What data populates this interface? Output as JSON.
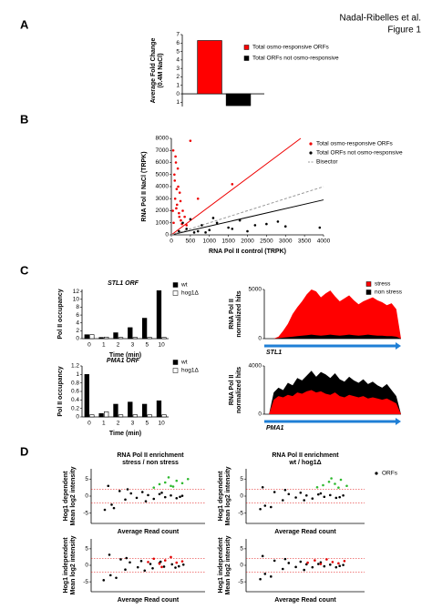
{
  "header": {
    "author": "Nadal-Ribelles et al.",
    "figure": "Figure 1"
  },
  "panels": [
    "A",
    "B",
    "C",
    "D"
  ],
  "chart_data": [
    {
      "type": "bar",
      "ylabel": [
        "Average Fold Change",
        "(0.4M NaCl)"
      ],
      "categories": [
        null
      ],
      "series": [
        {
          "name": "Total osmo-responsive ORFs",
          "color": "#ff0000",
          "values": [
            6.3
          ]
        },
        {
          "name": "Total ORFs not osmo-responsive",
          "color": "#000000",
          "values": [
            -1.4
          ]
        }
      ],
      "ylim": [
        -1.5,
        7
      ],
      "yticks": [
        7,
        6,
        5,
        4,
        3,
        2,
        1,
        0,
        {
          "value": -1,
          "label": "1"
        }
      ]
    },
    {
      "type": "scatter",
      "xlabel": "RNA Pol II control (TRPK)",
      "ylabel": [
        "RNA Pol II NaCl (TRPK)"
      ],
      "xlim": [
        0,
        4000
      ],
      "xticks": [
        0,
        500,
        1000,
        1500,
        2000,
        2500,
        3000,
        3500,
        4000
      ],
      "ylim": [
        0,
        8000
      ],
      "yticks": [
        0,
        1000,
        2000,
        3000,
        4000,
        5000,
        6000,
        7000,
        8000
      ],
      "series": [
        {
          "name": "Total osmo-responsive ORFs",
          "color": "#ee0000",
          "x": [
            50,
            80,
            100,
            120,
            150,
            180,
            200,
            220,
            250,
            300,
            350,
            400,
            60,
            90,
            130,
            170,
            240,
            280,
            500,
            700,
            1600,
            110,
            140,
            40,
            210
          ],
          "values": [
            7000,
            5000,
            3000,
            6000,
            2500,
            4000,
            1800,
            3500,
            1200,
            2000,
            1500,
            800,
            1000,
            4500,
            2200,
            5500,
            2800,
            900,
            7800,
            3000,
            4200,
            6500,
            3800,
            2000,
            1500
          ]
        },
        {
          "name": "Total ORFs not osmo-responsive",
          "color": "#000000",
          "x": [
            200,
            400,
            600,
            800,
            1000,
            1200,
            1500,
            1800,
            2000,
            2500,
            3000,
            3900,
            300,
            700,
            1100,
            1600,
            2200,
            2800,
            500,
            900
          ],
          "values": [
            300,
            500,
            200,
            800,
            400,
            1000,
            600,
            1200,
            300,
            900,
            700,
            600,
            1000,
            300,
            1400,
            500,
            800,
            1100,
            1300,
            200
          ]
        }
      ],
      "lines": [
        {
          "color": "#ee0000",
          "dash": false,
          "x": [
            0,
            3400
          ],
          "y": [
            0,
            8000
          ]
        },
        {
          "color": "#000000",
          "dash": false,
          "x": [
            0,
            4000
          ],
          "y": [
            0,
            2900
          ]
        },
        {
          "name": "Bisector",
          "color": "#999999",
          "dash": true,
          "x": [
            0,
            4000
          ],
          "y": [
            0,
            4000
          ]
        }
      ]
    },
    {
      "type": "bar",
      "title": "STL1 ORF",
      "xlabel": "Time (min)",
      "ylabel": [
        "Pol II occupancy"
      ],
      "categories": [
        "0",
        "1",
        "2",
        "3",
        "5",
        "10"
      ],
      "series": [
        {
          "name": "wt",
          "color": "#000000",
          "values": [
            1,
            0.3,
            1.5,
            2.8,
            5.2,
            12.2
          ]
        },
        {
          "name": "hog1Δ",
          "color": "#ffffff",
          "values": [
            1,
            0.4,
            0.3,
            0.3,
            0.3,
            0.3
          ]
        }
      ],
      "ylim": [
        0,
        12.5
      ],
      "yticks": [
        0,
        2,
        4,
        6,
        8,
        10,
        12
      ]
    },
    {
      "type": "bar",
      "title": "PMA1 ORF",
      "xlabel": "Time (min)",
      "ylabel": [
        "Pol II occupancy"
      ],
      "categories": [
        "0",
        "1",
        "2",
        "3",
        "5",
        "10"
      ],
      "series": [
        {
          "name": "wt",
          "color": "#000000",
          "values": [
            1.0,
            0.08,
            0.3,
            0.35,
            0.3,
            0.38
          ]
        },
        {
          "name": "hog1Δ",
          "color": "#ffffff",
          "values": [
            0.05,
            0.12,
            0.05,
            0.05,
            0.05,
            0.05
          ]
        }
      ],
      "ylim": [
        0,
        1.2
      ],
      "yticks": [
        0,
        0.2,
        0.4,
        0.6,
        0.8,
        1,
        1.2
      ]
    },
    {
      "type": "area",
      "ylabel": [
        "RNA Pol II",
        "normalized hits"
      ],
      "gene": "STL1",
      "ylim": [
        0,
        5000
      ],
      "yticks": [
        0,
        5000
      ],
      "series": [
        {
          "name": "stress",
          "color": "#ff0000",
          "values": [
            0,
            0,
            0,
            200,
            800,
            1500,
            2500,
            3200,
            3800,
            4500,
            5000,
            4800,
            4200,
            4600,
            4900,
            4300,
            3800,
            4100,
            4400,
            3900,
            3500,
            3800,
            4000,
            4200,
            3900,
            3700,
            3400,
            3600,
            3000,
            0
          ]
        },
        {
          "name": "non stress",
          "color": "#000000",
          "values": [
            0,
            0,
            0,
            50,
            100,
            150,
            200,
            250,
            300,
            350,
            400,
            350,
            300,
            350,
            400,
            350,
            300,
            350,
            400,
            350,
            300,
            350,
            400,
            350,
            300,
            300,
            250,
            250,
            200,
            0
          ]
        }
      ]
    },
    {
      "type": "area",
      "ylabel": [
        "RNA Pol II",
        "normalized hits"
      ],
      "gene": "PMA1",
      "ylim": [
        0,
        4000
      ],
      "yticks": [
        0,
        4000
      ],
      "series": [
        {
          "color": "#000000",
          "values": [
            0,
            0,
            1800,
            2200,
            2000,
            2600,
            2400,
            3000,
            2800,
            3200,
            3600,
            3100,
            3500,
            3300,
            3000,
            3400,
            2900,
            2700,
            3100,
            2800,
            2600,
            2900,
            2500,
            2700,
            2400,
            2200,
            2500,
            2000,
            1500,
            0
          ]
        },
        {
          "color": "#ff0000",
          "values": [
            0,
            0,
            1200,
            1500,
            1400,
            1600,
            1500,
            1800,
            1700,
            1900,
            2000,
            1800,
            1900,
            1700,
            1600,
            1800,
            1500,
            1400,
            1600,
            1500,
            1400,
            1500,
            1300,
            1400,
            1300,
            1200,
            1300,
            1100,
            900,
            0
          ]
        }
      ]
    },
    {
      "type": "scatter",
      "title": [
        "RNA Pol II enrichment",
        "stress / non stress"
      ],
      "xlabel": "Average Read count",
      "ylabel": [
        "Hog1 dependent",
        "Mean log2 intensity"
      ],
      "xlim": [
        0,
        10
      ],
      "ylim": [
        -8,
        8
      ],
      "yticks": [
        5,
        0,
        -5
      ],
      "thresholds": [
        2,
        -2
      ],
      "series": [
        {
          "color": "#000000",
          "x": [
            1.2,
            1.8,
            2.5,
            3,
            3.5,
            4,
            4.5,
            5,
            5.5,
            6,
            6.5,
            7,
            7.5,
            8,
            2,
            3.2,
            4.8,
            6.2,
            7.8,
            1.5
          ],
          "values": [
            -4,
            -2.5,
            1.5,
            -1,
            0.8,
            -0.5,
            1.2,
            0.3,
            -0.8,
            0.6,
            -0.3,
            0.2,
            -0.6,
            0.1,
            -3.5,
            2,
            -1.5,
            1,
            -0.2,
            3
          ]
        },
        {
          "color": "#2db82d",
          "x": [
            5.5,
            6,
            6.5,
            7,
            7.5,
            8,
            8.5,
            6.8,
            7.2
          ],
          "values": [
            2.5,
            3.5,
            4,
            3,
            4.5,
            3.8,
            5,
            5.5,
            2.8
          ]
        }
      ]
    },
    {
      "type": "scatter",
      "title": [
        "RNA Pol II enrichment",
        "wt / hog1Δ"
      ],
      "xlabel": "Average Read count",
      "ylabel": [
        "Hog1 dependent",
        "Mean log2 intensity"
      ],
      "xlim": [
        0,
        10
      ],
      "ylim": [
        -8,
        8
      ],
      "yticks": [
        5,
        0,
        -5
      ],
      "thresholds": [
        2,
        -2
      ],
      "series": [
        {
          "name": "ORFs",
          "color": "#000000",
          "x": [
            1.2,
            1.6,
            2.4,
            3.1,
            3.6,
            4.2,
            4.6,
            5.1,
            5.6,
            6.1,
            6.6,
            7.1,
            7.6,
            8.2,
            2.1,
            3.3,
            4.9,
            6.3,
            7.9,
            1.4
          ],
          "values": [
            -3.8,
            -2.8,
            1.2,
            -1.2,
            0.6,
            -0.4,
            1,
            0.2,
            -0.7,
            0.5,
            -0.2,
            0.3,
            -0.5,
            0.2,
            -3.2,
            1.8,
            -1.2,
            0.8,
            -0.3,
            2.6
          ]
        },
        {
          "color": "#2db82d",
          "x": [
            6,
            6.5,
            7,
            7.5,
            8,
            8.5,
            7.2,
            7.8
          ],
          "values": [
            2.6,
            3.2,
            4.2,
            3.6,
            4.8,
            3,
            5.2,
            2.5
          ]
        }
      ]
    },
    {
      "type": "scatter",
      "xlabel": "Average Read count",
      "ylabel": [
        "Hog1 independent",
        "Mean log2 intensity"
      ],
      "xlim": [
        0,
        10
      ],
      "ylim": [
        -8,
        8
      ],
      "yticks": [
        5,
        0,
        -5
      ],
      "thresholds": [
        2,
        -2
      ],
      "series": [
        {
          "color": "#000000",
          "x": [
            1.1,
            1.7,
            2.6,
            3,
            3.4,
            4.1,
            4.4,
            5.2,
            5.4,
            6,
            6.4,
            7.1,
            7.4,
            8.1,
            2.2,
            3.1,
            4.7,
            6.1,
            7.7,
            1.6
          ],
          "values": [
            -4.5,
            -3,
            1.8,
            -1.3,
            0.9,
            -0.6,
            1.3,
            0.4,
            -0.9,
            0.7,
            -0.4,
            0.3,
            -0.7,
            0.2,
            -3.8,
            2.2,
            -1.6,
            1.1,
            -0.3,
            3.2
          ]
        },
        {
          "color": "#e00000",
          "x": [
            5,
            5.5,
            6,
            6.5,
            7,
            7.5,
            8,
            6.2
          ],
          "values": [
            1,
            2,
            0.5,
            1.5,
            2.5,
            0.8,
            1.2,
            -0.5
          ]
        }
      ]
    },
    {
      "type": "scatter",
      "xlabel": "Average Read count",
      "ylabel": [
        "Hog1 independent",
        "Mean log2 intensity"
      ],
      "xlim": [
        0,
        10
      ],
      "ylim": [
        -8,
        8
      ],
      "yticks": [
        5,
        0,
        -5
      ],
      "thresholds": [
        2,
        -2
      ],
      "series": [
        {
          "color": "#000000",
          "x": [
            1.2,
            1.6,
            2.4,
            3.1,
            3.6,
            4.2,
            4.6,
            5.1,
            5.6,
            6.1,
            6.6,
            7.1,
            7.6,
            8.2,
            2.1,
            3.3,
            4.9,
            6.3,
            7.9,
            1.4
          ],
          "values": [
            -4.2,
            -2.6,
            1.4,
            -1.1,
            0.7,
            -0.5,
            1.1,
            0.3,
            -0.6,
            0.4,
            -0.3,
            0.2,
            -0.6,
            0.1,
            -3.4,
            1.9,
            -1.4,
            0.9,
            -0.2,
            2.8
          ]
        },
        {
          "color": "#e00000",
          "x": [
            5.2,
            5.8,
            6.3,
            6.8,
            7.3,
            7.8,
            8.3
          ],
          "values": [
            0.8,
            1.5,
            0.4,
            1.8,
            1,
            0.6,
            1.3
          ]
        }
      ]
    }
  ]
}
